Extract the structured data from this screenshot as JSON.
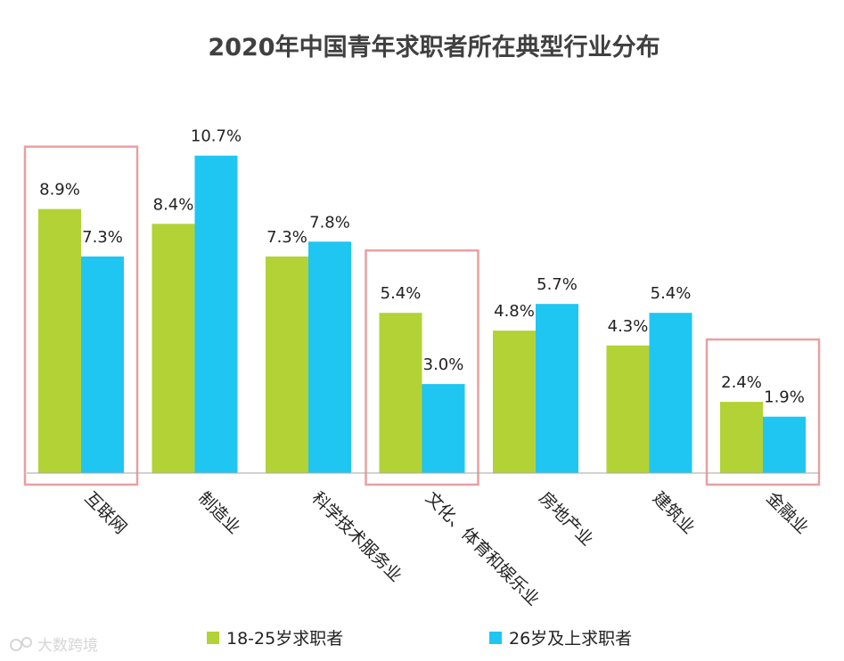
{
  "chart_data": {
    "type": "bar",
    "title": "2020年中国青年求职者所在典型行业分布",
    "categories": [
      "互联网",
      "制造业",
      "科学技术服务业",
      "文化、体育和娱乐业",
      "房地产业",
      "建筑业",
      "金融业"
    ],
    "series": [
      {
        "name": "18-25岁求职者",
        "color": "#b3d236",
        "values": [
          8.9,
          8.4,
          7.3,
          5.4,
          4.8,
          4.3,
          2.4
        ],
        "labels": [
          "8.9%",
          "8.4%",
          "7.3%",
          "5.4%",
          "4.8%",
          "4.3%",
          "2.4%"
        ]
      },
      {
        "name": "26岁及上求职者",
        "color": "#1fc6f2",
        "values": [
          7.3,
          10.7,
          7.8,
          3.0,
          5.7,
          5.4,
          1.9
        ],
        "labels": [
          "7.3%",
          "10.7%",
          "7.8%",
          "3.0%",
          "5.7%",
          "5.4%",
          "1.9%"
        ]
      }
    ],
    "highlighted_categories": [
      "互联网",
      "文化、体育和娱乐业",
      "金融业"
    ],
    "highlight_color": "#e9a0a0",
    "ylim": [
      0,
      11
    ],
    "grid": false,
    "legend_position": "bottom"
  },
  "watermark": "大数跨境"
}
